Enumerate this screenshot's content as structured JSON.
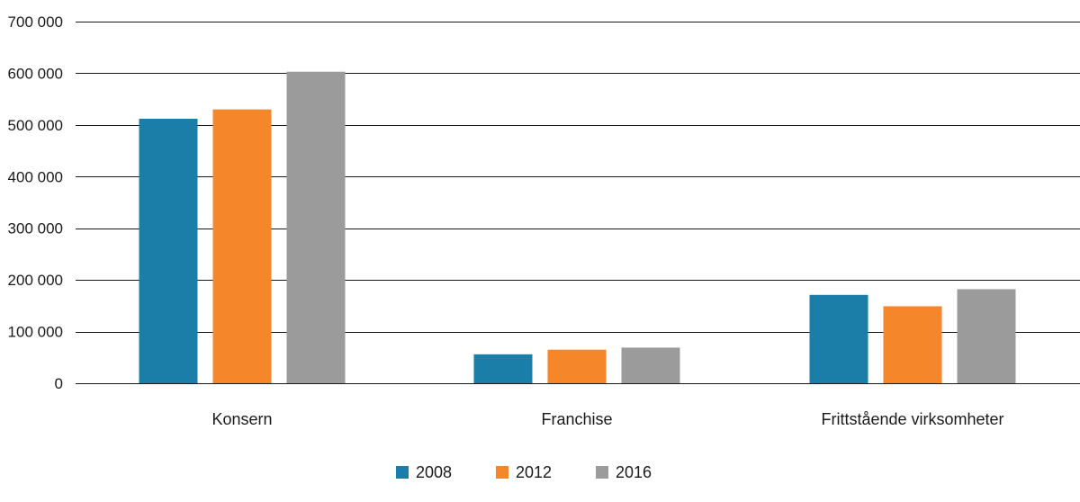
{
  "chart_data": {
    "type": "bar",
    "title": "",
    "xlabel": "",
    "ylabel": "",
    "categories": [
      "Konsern",
      "Franchise",
      "Frittstående virksomheter"
    ],
    "series": [
      {
        "name": "2008",
        "color": "#1a7ea8",
        "values": [
          512000,
          56000,
          171000
        ]
      },
      {
        "name": "2012",
        "color": "#f6862a",
        "values": [
          530000,
          65000,
          149000
        ]
      },
      {
        "name": "2016",
        "color": "#9a9b9a",
        "values": [
          603000,
          69000,
          182000
        ]
      }
    ],
    "ylim": [
      0,
      700000
    ],
    "yticks": [
      0,
      100000,
      200000,
      300000,
      400000,
      500000,
      600000,
      700000
    ],
    "ytick_labels": [
      "0",
      "100 000",
      "200 000",
      "300 000",
      "400 000",
      "500 000",
      "600 000",
      "700 000"
    ],
    "grid": true,
    "legend_position": "bottom-center"
  }
}
